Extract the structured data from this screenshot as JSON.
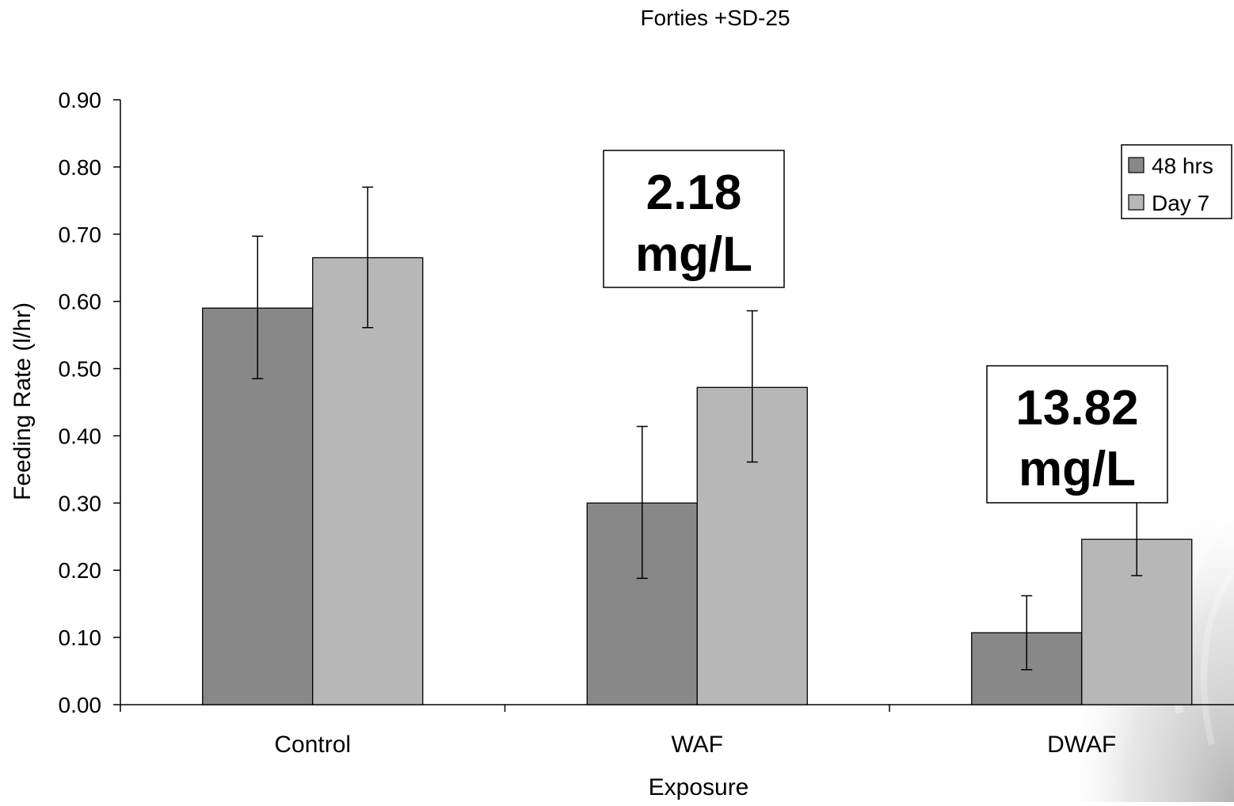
{
  "chart_data": {
    "type": "bar",
    "title": "Forties +SD-25",
    "xlabel": "Exposure",
    "ylabel": "Feeding Rate (l/hr)",
    "ylim": [
      0,
      0.9
    ],
    "yticks": [
      "0.00",
      "0.10",
      "0.20",
      "0.30",
      "0.40",
      "0.50",
      "0.60",
      "0.70",
      "0.80",
      "0.90"
    ],
    "categories": [
      "Control",
      "WAF",
      "DWAF"
    ],
    "series": [
      {
        "name": "48 hrs",
        "color": "#888888",
        "values": [
          0.59,
          0.3,
          0.107
        ],
        "error_low": [
          0.485,
          0.188,
          0.052
        ],
        "error_high": [
          0.697,
          0.414,
          0.162
        ]
      },
      {
        "name": "Day 7",
        "color": "#b7b7b7",
        "values": [
          0.665,
          0.472,
          0.246
        ],
        "error_low": [
          0.561,
          0.361,
          0.192
        ],
        "error_high": [
          0.77,
          0.586,
          0.303
        ]
      }
    ],
    "legend_position": "top-right",
    "annotations": [
      {
        "category": "WAF",
        "lines": [
          "2.18",
          "mg/L"
        ]
      },
      {
        "category": "DWAF",
        "lines": [
          "13.82",
          "mg/L"
        ]
      }
    ],
    "grid": false
  }
}
